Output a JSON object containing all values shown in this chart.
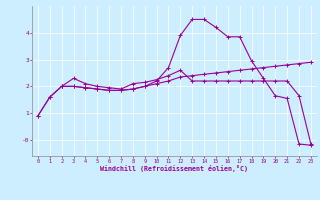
{
  "xlabel": "Windchill (Refroidissement éolien,°C)",
  "bg_color": "#cceeff",
  "line_color": "#990099",
  "line1_x": [
    0,
    1,
    2,
    3,
    4,
    5,
    6,
    7,
    8,
    9,
    10,
    11,
    12,
    13,
    14,
    15,
    16,
    17,
    18,
    19,
    20,
    21,
    22,
    23
  ],
  "line1_y": [
    0.9,
    1.6,
    2.0,
    2.0,
    1.95,
    1.9,
    1.85,
    1.85,
    1.9,
    2.0,
    2.2,
    2.7,
    3.9,
    4.5,
    4.5,
    4.2,
    3.85,
    3.85,
    2.95,
    2.3,
    1.65,
    1.55,
    -0.15,
    -0.2
  ],
  "line2_x": [
    0,
    1,
    2,
    3,
    4,
    5,
    6,
    7,
    8,
    9,
    10,
    11,
    12,
    13,
    14,
    15,
    16,
    17,
    18,
    19,
    20,
    21,
    22,
    23
  ],
  "line2_y": [
    0.9,
    1.6,
    2.0,
    2.3,
    2.1,
    2.0,
    1.95,
    1.9,
    2.1,
    2.15,
    2.25,
    2.4,
    2.6,
    2.2,
    2.2,
    2.2,
    2.2,
    2.2,
    2.2,
    2.2,
    2.2,
    2.2,
    1.65,
    -0.15
  ],
  "line3_x": [
    2,
    3,
    4,
    5,
    6,
    7,
    8,
    9,
    10,
    11,
    12,
    13,
    14,
    15,
    16,
    17,
    18,
    19,
    20,
    21,
    22,
    23
  ],
  "line3_y": [
    2.0,
    2.0,
    1.95,
    1.9,
    1.85,
    1.85,
    1.9,
    2.0,
    2.1,
    2.2,
    2.35,
    2.4,
    2.45,
    2.5,
    2.55,
    2.6,
    2.65,
    2.7,
    2.75,
    2.8,
    2.85,
    2.9
  ],
  "xlim": [
    -0.5,
    23.5
  ],
  "ylim": [
    -0.6,
    5.0
  ],
  "yticks": [
    0,
    1,
    2,
    3,
    4
  ],
  "ytick_labels": [
    "-0",
    "1",
    "2",
    "3",
    "4"
  ],
  "xticks": [
    0,
    1,
    2,
    3,
    4,
    5,
    6,
    7,
    8,
    9,
    10,
    11,
    12,
    13,
    14,
    15,
    16,
    17,
    18,
    19,
    20,
    21,
    22,
    23
  ]
}
